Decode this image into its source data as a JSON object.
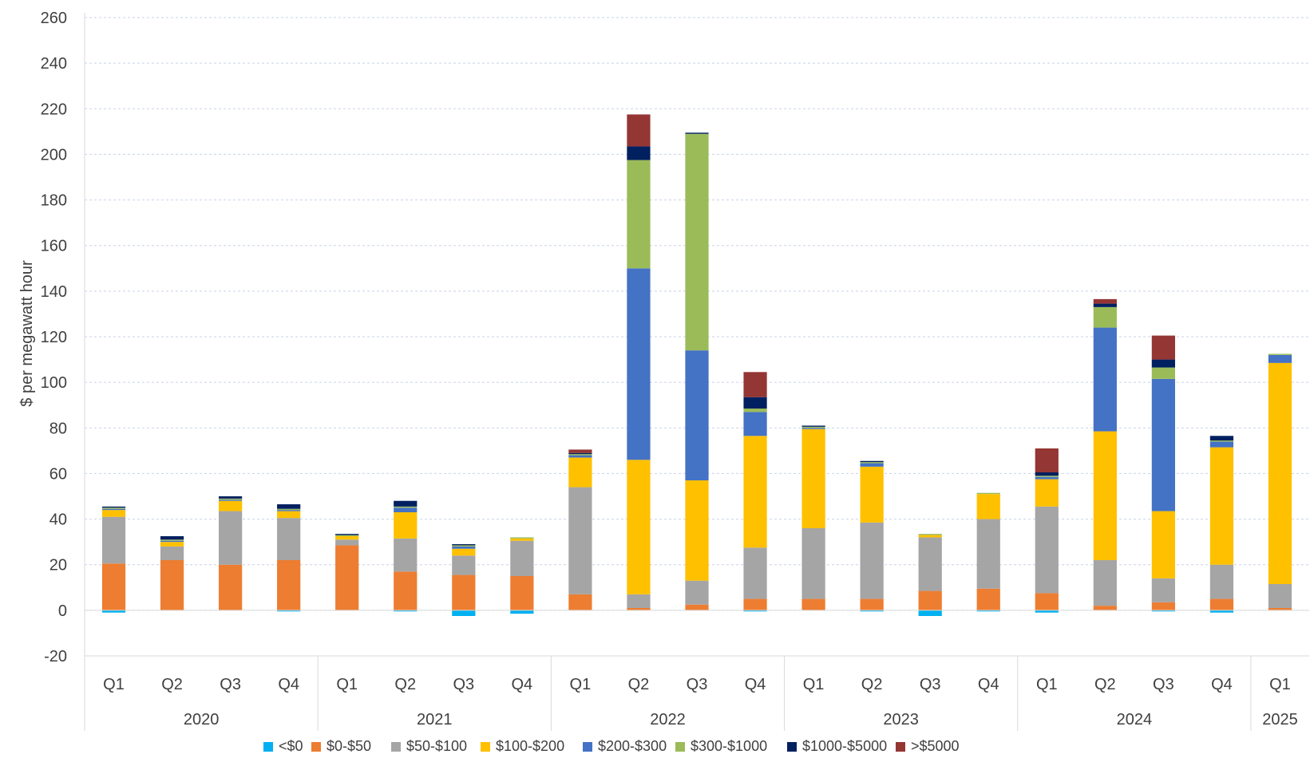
{
  "chart_data": {
    "type": "bar",
    "stacked": true,
    "ylabel": "$ per megawatt hour",
    "ylim": [
      -20,
      260
    ],
    "yticks": [
      -20,
      0,
      20,
      40,
      60,
      80,
      100,
      120,
      140,
      160,
      180,
      200,
      220,
      240,
      260
    ],
    "grid": true,
    "legend_position": "bottom",
    "categories": [
      "Q1",
      "Q2",
      "Q3",
      "Q4",
      "Q1",
      "Q2",
      "Q3",
      "Q4",
      "Q1",
      "Q2",
      "Q3",
      "Q4",
      "Q1",
      "Q2",
      "Q3",
      "Q4",
      "Q1",
      "Q2",
      "Q3",
      "Q4",
      "Q1"
    ],
    "groups": [
      {
        "label": "2020",
        "count": 4
      },
      {
        "label": "2021",
        "count": 4
      },
      {
        "label": "2022",
        "count": 4
      },
      {
        "label": "2023",
        "count": 4
      },
      {
        "label": "2024",
        "count": 4
      },
      {
        "label": "2025",
        "count": 1
      }
    ],
    "series": [
      {
        "name": "<$0",
        "color": "#00B0F0",
        "values": [
          -1,
          0,
          0,
          -0.5,
          0,
          -0.5,
          -2.5,
          -1.5,
          0,
          0,
          0,
          -0.5,
          0,
          -0.5,
          -2.5,
          -0.5,
          -1,
          0,
          -0.5,
          -1,
          0
        ]
      },
      {
        "name": "$0-$50",
        "color": "#ED7D31",
        "values": [
          20.5,
          22,
          20,
          22,
          28.5,
          17,
          15.5,
          15,
          7,
          1,
          2.5,
          5,
          5,
          5,
          8.5,
          9.5,
          7.5,
          2,
          3.5,
          5,
          1
        ]
      },
      {
        "name": "$50-$100",
        "color": "#A5A5A5",
        "values": [
          20.5,
          6,
          23.5,
          18.5,
          2.5,
          14.5,
          8.5,
          15.5,
          47,
          6,
          10.5,
          22.5,
          31,
          33.5,
          23.5,
          30.5,
          38,
          20,
          10.5,
          15,
          10.5
        ]
      },
      {
        "name": "$100-$200",
        "color": "#FFC000",
        "values": [
          3,
          2,
          4.5,
          3,
          1.5,
          11.5,
          3,
          1,
          13,
          59,
          44,
          49,
          43.5,
          24.5,
          1,
          11,
          12,
          56.5,
          29.5,
          51.5,
          97
        ]
      },
      {
        "name": "$200-$300",
        "color": "#4472C4",
        "values": [
          0.5,
          0.5,
          0.5,
          0.5,
          0,
          2,
          1,
          0,
          1,
          84,
          57,
          10.5,
          0.5,
          1.5,
          0,
          0,
          1,
          45.5,
          58,
          2.5,
          3.5
        ]
      },
      {
        "name": "$300-$1000",
        "color": "#9BBB59",
        "values": [
          0.5,
          0.5,
          0.5,
          0.5,
          0.5,
          0.5,
          0.5,
          0.5,
          0.5,
          47.5,
          95,
          1.5,
          0.5,
          0.5,
          0.5,
          0.5,
          0.5,
          9,
          5,
          0.5,
          0.5
        ]
      },
      {
        "name": "$1000-$5000",
        "color": "#002060",
        "values": [
          0.5,
          1.5,
          1,
          2,
          0.5,
          2.5,
          0.5,
          0,
          0.5,
          6,
          0.5,
          5,
          0.5,
          0.5,
          0,
          0,
          1.5,
          1.5,
          3.5,
          2,
          0
        ]
      },
      {
        "name": ">$5000",
        "color": "#943634",
        "values": [
          0,
          0,
          0,
          0,
          0,
          0,
          0,
          0,
          1.5,
          14,
          0,
          11,
          0,
          0,
          0,
          0,
          10.5,
          2,
          10.5,
          0,
          0
        ]
      }
    ]
  }
}
